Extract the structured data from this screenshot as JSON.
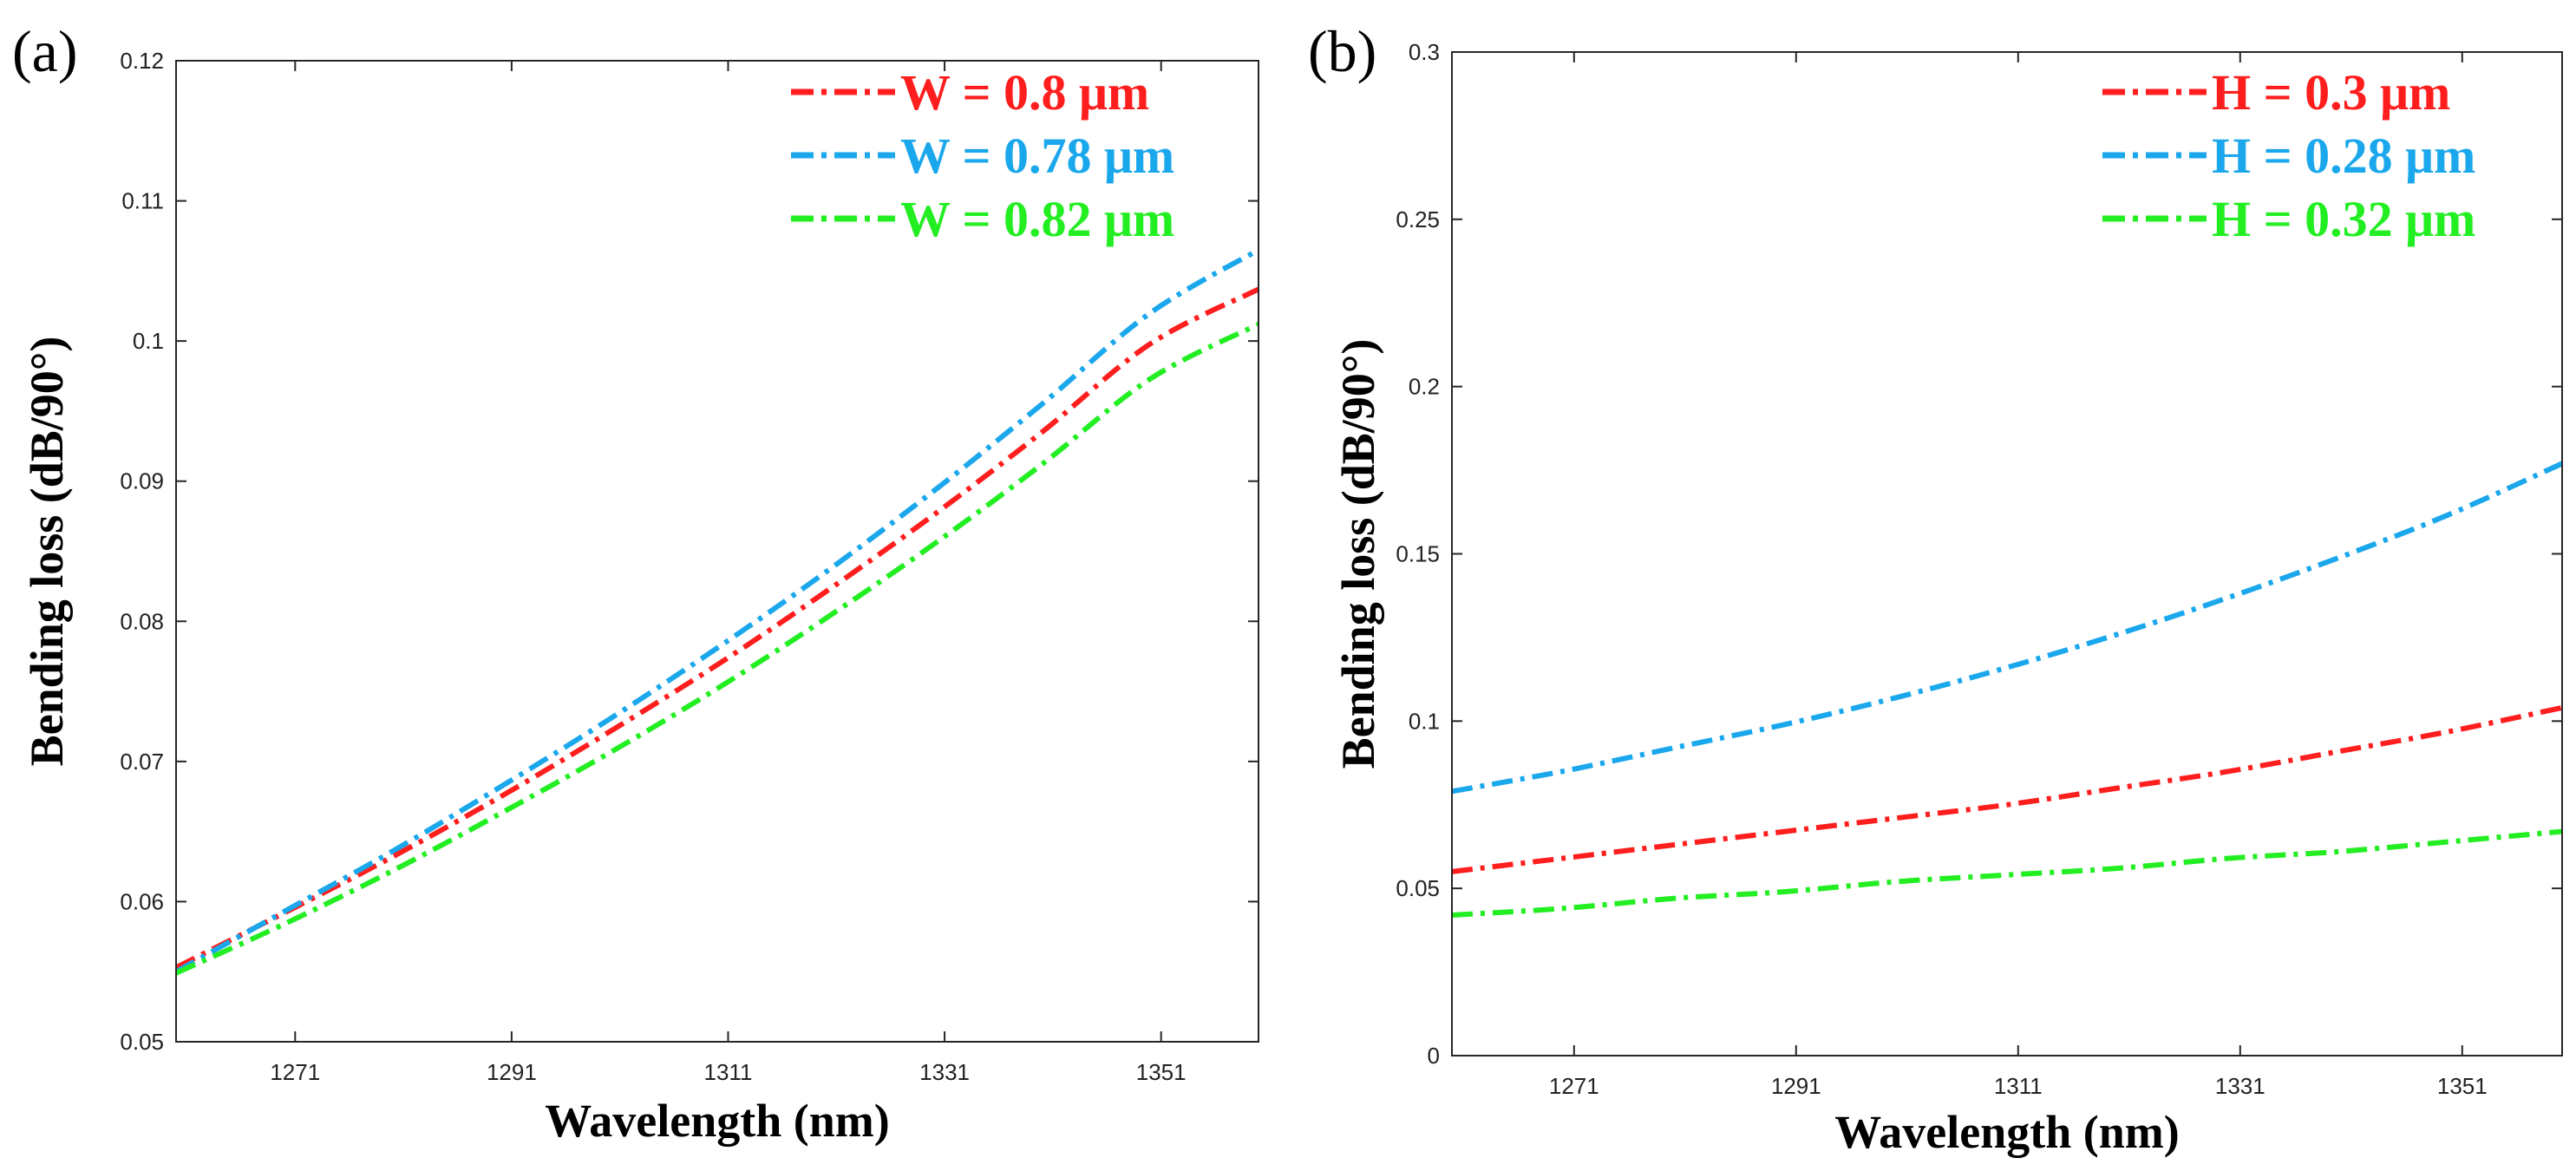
{
  "chart_data": [
    {
      "type": "line",
      "panel_label": "(a)",
      "title": "",
      "xlabel": "Wavelength (nm)",
      "ylabel": "Bending loss (dB/90°)",
      "xlim": [
        1260,
        1360
      ],
      "ylim": [
        0.05,
        0.12
      ],
      "xticks": [
        1271,
        1291,
        1311,
        1331,
        1351
      ],
      "yticks": [
        0.05,
        0.06,
        0.07,
        0.08,
        0.09,
        0.1,
        0.11,
        0.12
      ],
      "ytick_labels": [
        "0.05",
        "0.06",
        "0.07",
        "0.08",
        "0.09",
        "0.1",
        "0.11",
        "0.12"
      ],
      "legend_position": "top-right",
      "grid": false,
      "series": [
        {
          "name": "W = 0.8 μm",
          "color": "#ff1e1e",
          "x": [
            1260,
            1270,
            1280,
            1290,
            1300,
            1310,
            1320,
            1330,
            1340,
            1350,
            1360
          ],
          "values": [
            0.0553,
            0.0592,
            0.0632,
            0.0675,
            0.0721,
            0.0769,
            0.0821,
            0.0876,
            0.0935,
            0.0998,
            0.1037
          ]
        },
        {
          "name": "W = 0.78 μm",
          "color": "#1aa7ec",
          "x": [
            1260,
            1270,
            1280,
            1290,
            1300,
            1310,
            1320,
            1330,
            1340,
            1350,
            1360
          ],
          "values": [
            0.055,
            0.0593,
            0.0636,
            0.0682,
            0.073,
            0.0781,
            0.0835,
            0.0893,
            0.0955,
            0.102,
            0.1065
          ]
        },
        {
          "name": "W = 0.82 μm",
          "color": "#22ee22",
          "x": [
            1260,
            1270,
            1280,
            1290,
            1300,
            1310,
            1320,
            1330,
            1340,
            1350,
            1360
          ],
          "values": [
            0.0549,
            0.0584,
            0.0622,
            0.0663,
            0.0706,
            0.0752,
            0.0802,
            0.0855,
            0.0912,
            0.0973,
            0.1012
          ]
        }
      ]
    },
    {
      "type": "line",
      "panel_label": "(b)",
      "title": "",
      "xlabel": "Wavelength (nm)",
      "ylabel": "Bending loss (dB/90°)",
      "xlim": [
        1260,
        1360
      ],
      "ylim": [
        0,
        0.3
      ],
      "xticks": [
        1271,
        1291,
        1311,
        1331,
        1351
      ],
      "yticks": [
        0,
        0.05,
        0.1,
        0.15,
        0.2,
        0.25,
        0.3
      ],
      "ytick_labels": [
        "0",
        "0.05",
        "0.1",
        "0.15",
        "0.2",
        "0.25",
        "0.3"
      ],
      "legend_position": "top-right",
      "grid": false,
      "series": [
        {
          "name": "H = 0.3 μm",
          "color": "#ff1e1e",
          "x": [
            1260,
            1270,
            1280,
            1290,
            1300,
            1310,
            1320,
            1330,
            1340,
            1350,
            1360
          ],
          "values": [
            0.055,
            0.059,
            0.063,
            0.067,
            0.071,
            0.075,
            0.08,
            0.085,
            0.091,
            0.097,
            0.104
          ]
        },
        {
          "name": "H = 0.28 μm",
          "color": "#1aa7ec",
          "x": [
            1260,
            1270,
            1280,
            1290,
            1300,
            1310,
            1320,
            1330,
            1340,
            1350,
            1360
          ],
          "values": [
            0.079,
            0.085,
            0.092,
            0.099,
            0.107,
            0.116,
            0.126,
            0.137,
            0.149,
            0.162,
            0.177
          ]
        },
        {
          "name": "H = 0.32 μm",
          "color": "#22ee22",
          "x": [
            1260,
            1270,
            1280,
            1290,
            1300,
            1310,
            1320,
            1330,
            1340,
            1350,
            1360
          ],
          "values": [
            0.042,
            0.044,
            0.047,
            0.049,
            0.052,
            0.054,
            0.056,
            0.059,
            0.061,
            0.064,
            0.067
          ]
        }
      ]
    }
  ]
}
